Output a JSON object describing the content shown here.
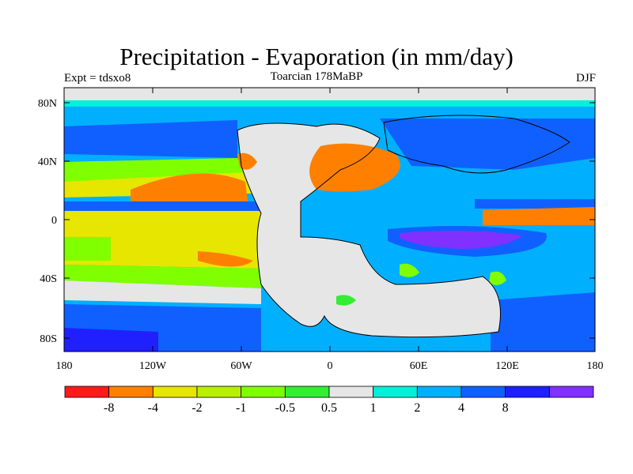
{
  "header": {
    "title": "Precipitation - Evaporation (in mm/day)",
    "left_label": "Expt = tdsxo8",
    "center_label": "Toarcian 178MaBP",
    "right_label": "DJF"
  },
  "map": {
    "lat_labels": [
      "80N",
      "40N",
      "0",
      "40S",
      "80S"
    ],
    "lon_labels": [
      "180",
      "120W",
      "60W",
      "0",
      "60E",
      "120E",
      "180"
    ],
    "colors": {
      "red": "#ff1a1a",
      "orange": "#ff8000",
      "yellow": "#e6e600",
      "yellowgreen": "#b8f000",
      "lightgreen": "#80ff00",
      "green": "#33ee33",
      "gray": "#e6e6e6",
      "cyan": "#00f0d8",
      "skyblue": "#00b0ff",
      "blue": "#1060ff",
      "darkblue": "#2020ff",
      "purple": "#8030ff"
    }
  },
  "colorbar": {
    "colors": [
      "#ff1a1a",
      "#ff8000",
      "#e6e600",
      "#b8f000",
      "#80ff00",
      "#33ee33",
      "#e6e6e6",
      "#00f0d8",
      "#00b0ff",
      "#1060ff",
      "#2020ff",
      "#8030ff"
    ],
    "labels": [
      "-8",
      "-4",
      "-2",
      "-1",
      "-0.5",
      "0.5",
      "1",
      "2",
      "4",
      "8"
    ]
  }
}
